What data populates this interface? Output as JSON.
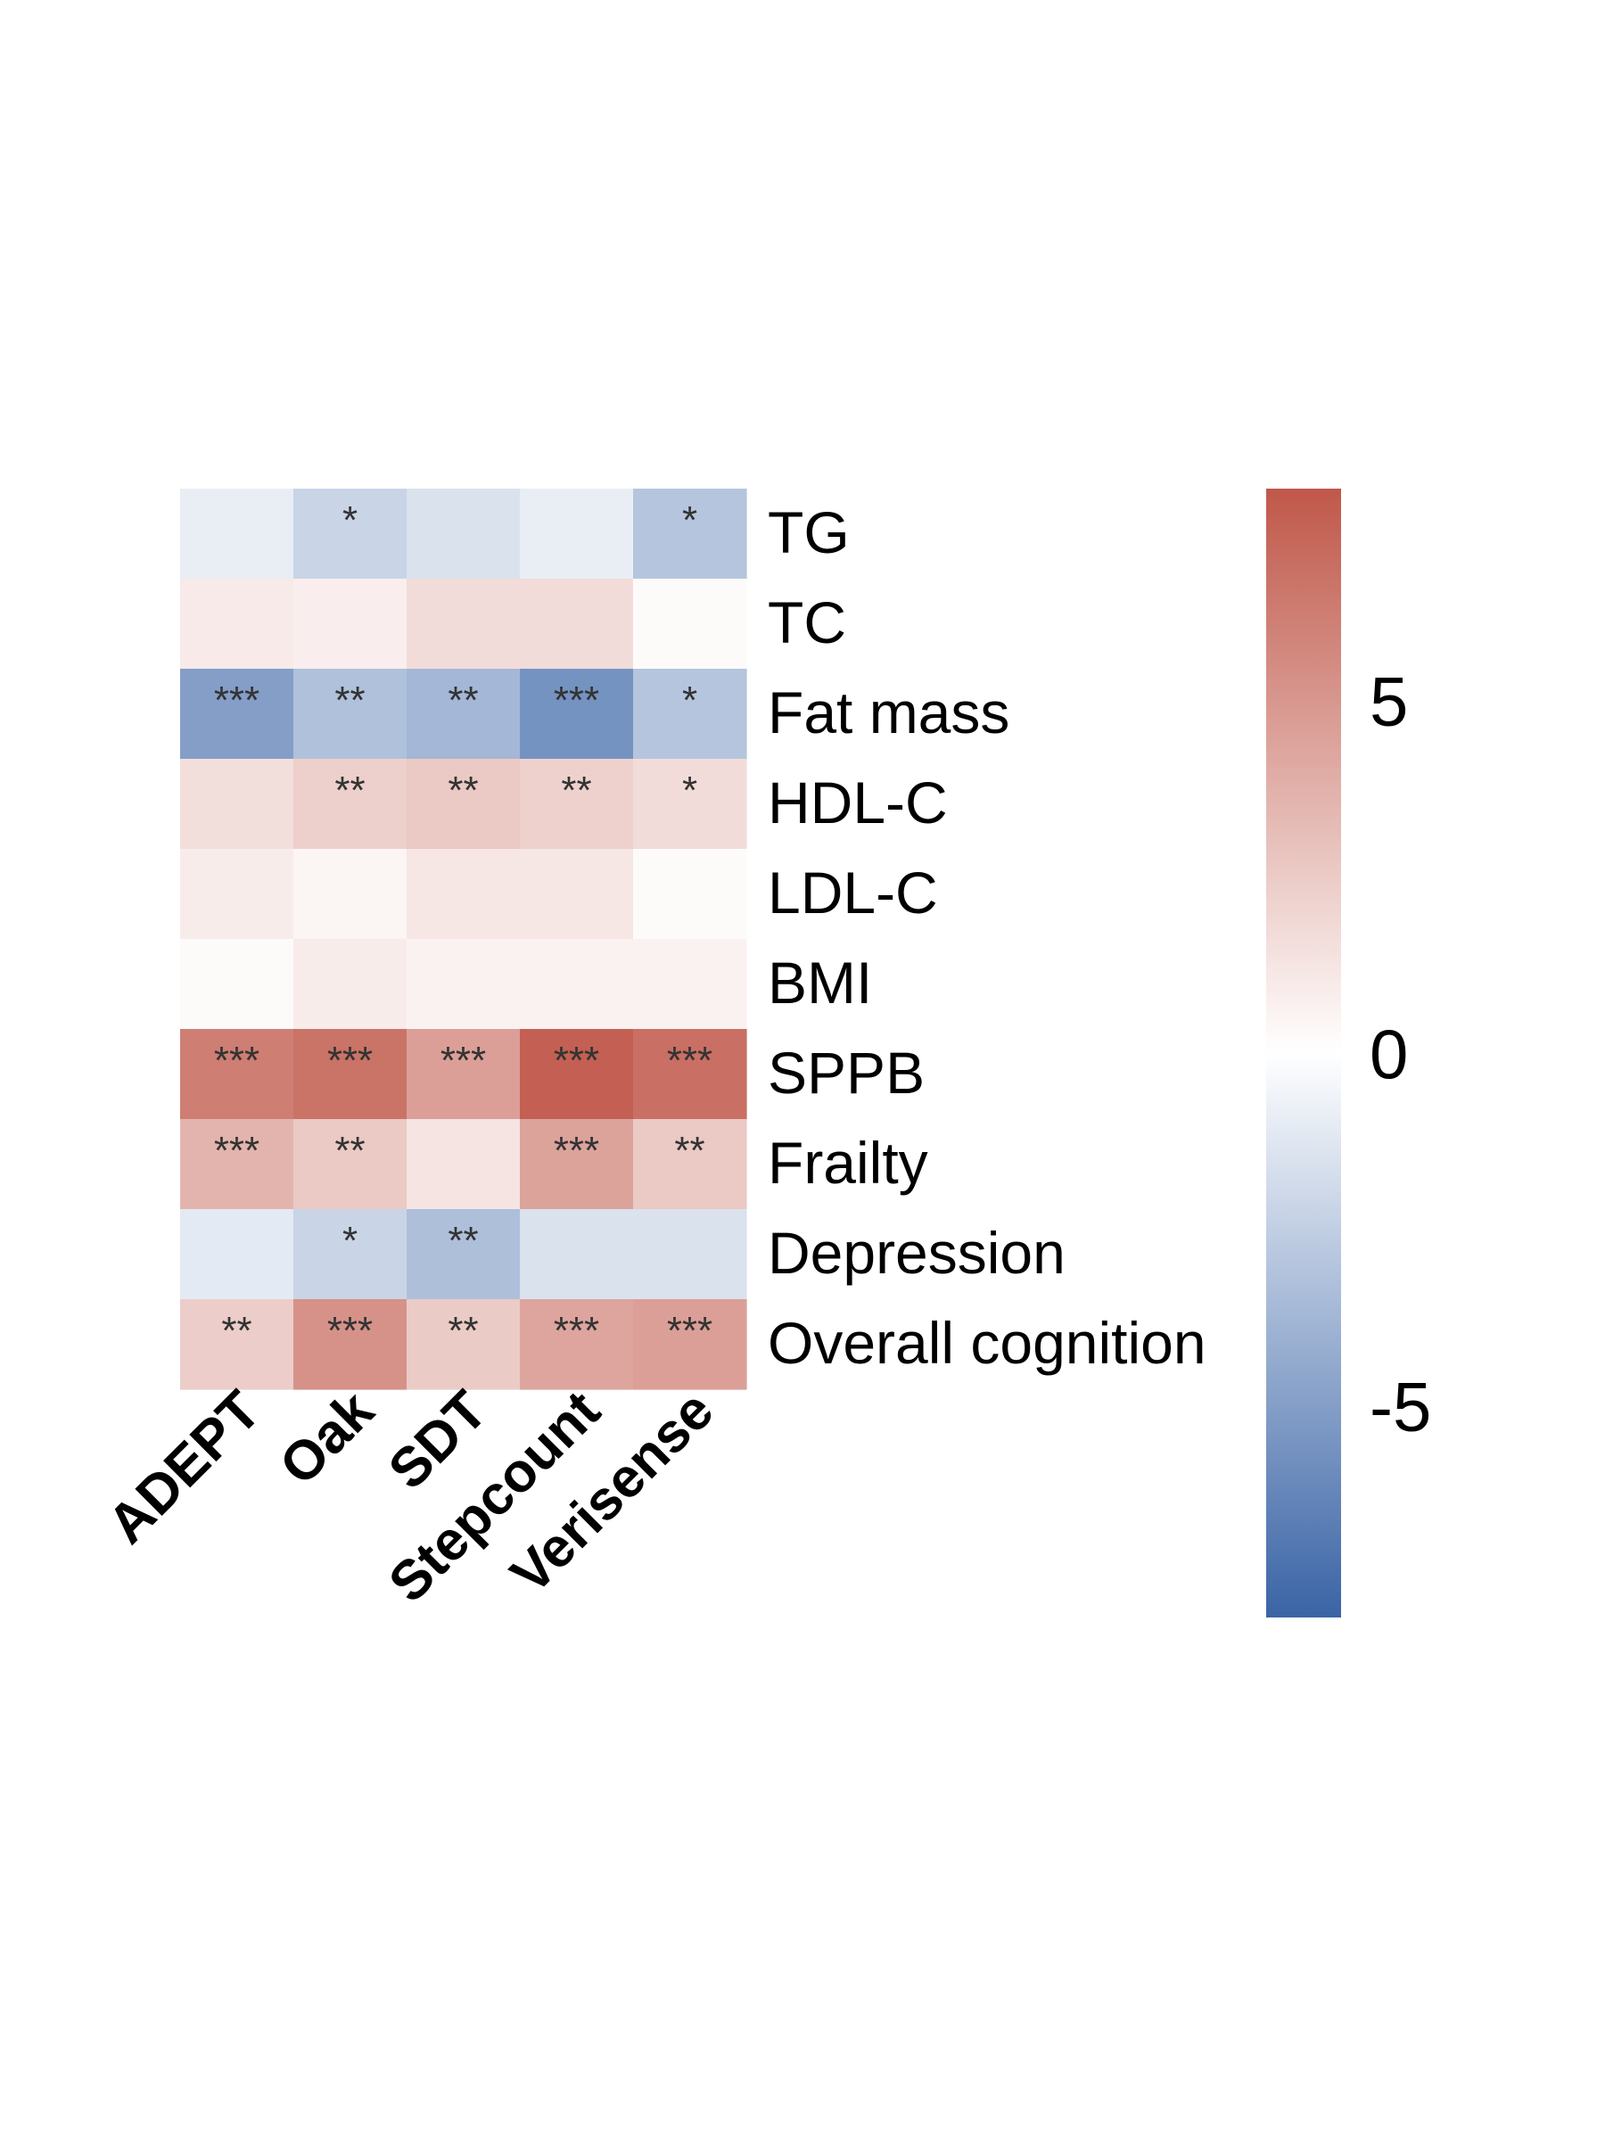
{
  "chart_data": {
    "type": "heatmap",
    "title": "",
    "xlabel": "",
    "ylabel": "",
    "columns": [
      "ADEPT",
      "Oak",
      "SDT",
      "Stepcount",
      "Verisense"
    ],
    "rows": [
      "TG",
      "TC",
      "Fat mass",
      "HDL-C",
      "LDL-C",
      "BMI",
      "SPPB",
      "Frailty",
      "Depression",
      "Overall cognition"
    ],
    "values": [
      [
        -0.9,
        -2.2,
        -1.5,
        -0.9,
        -3.0
      ],
      [
        1.0,
        0.8,
        1.7,
        1.7,
        0.2
      ],
      [
        -5.0,
        -3.2,
        -3.7,
        -5.6,
        -3.0
      ],
      [
        1.6,
        2.3,
        2.6,
        2.2,
        1.7
      ],
      [
        0.9,
        0.5,
        1.2,
        1.2,
        0.2
      ],
      [
        0.2,
        0.9,
        0.6,
        0.6,
        0.6
      ],
      [
        6.2,
        6.7,
        4.6,
        7.6,
        6.9
      ],
      [
        3.6,
        2.6,
        1.3,
        4.4,
        2.6
      ],
      [
        -1.1,
        -2.2,
        -3.3,
        -1.5,
        -1.5
      ],
      [
        2.4,
        5.2,
        2.5,
        4.3,
        4.6
      ]
    ],
    "significance": [
      [
        "",
        "*",
        "",
        "",
        "*"
      ],
      [
        "",
        "",
        "",
        "",
        ""
      ],
      [
        "***",
        "**",
        "**",
        "***",
        "*"
      ],
      [
        "",
        "**",
        "**",
        "**",
        "*"
      ],
      [
        "",
        "",
        "",
        "",
        ""
      ],
      [
        "",
        "",
        "",
        "",
        ""
      ],
      [
        "***",
        "***",
        "***",
        "***",
        "***"
      ],
      [
        "***",
        "**",
        "",
        "***",
        "**"
      ],
      [
        "",
        "*",
        "**",
        "",
        ""
      ],
      [
        "**",
        "***",
        "**",
        "***",
        "***"
      ]
    ],
    "colorbar": {
      "range": [
        -8,
        8
      ],
      "ticks": [
        5,
        0,
        -5
      ],
      "tick_labels": [
        "5",
        "0",
        "-5"
      ],
      "colors": {
        "low": "#3a64a6",
        "mid": "#ffffff",
        "high": "#c0584a"
      }
    },
    "legend_placement": "right",
    "grid": false
  }
}
